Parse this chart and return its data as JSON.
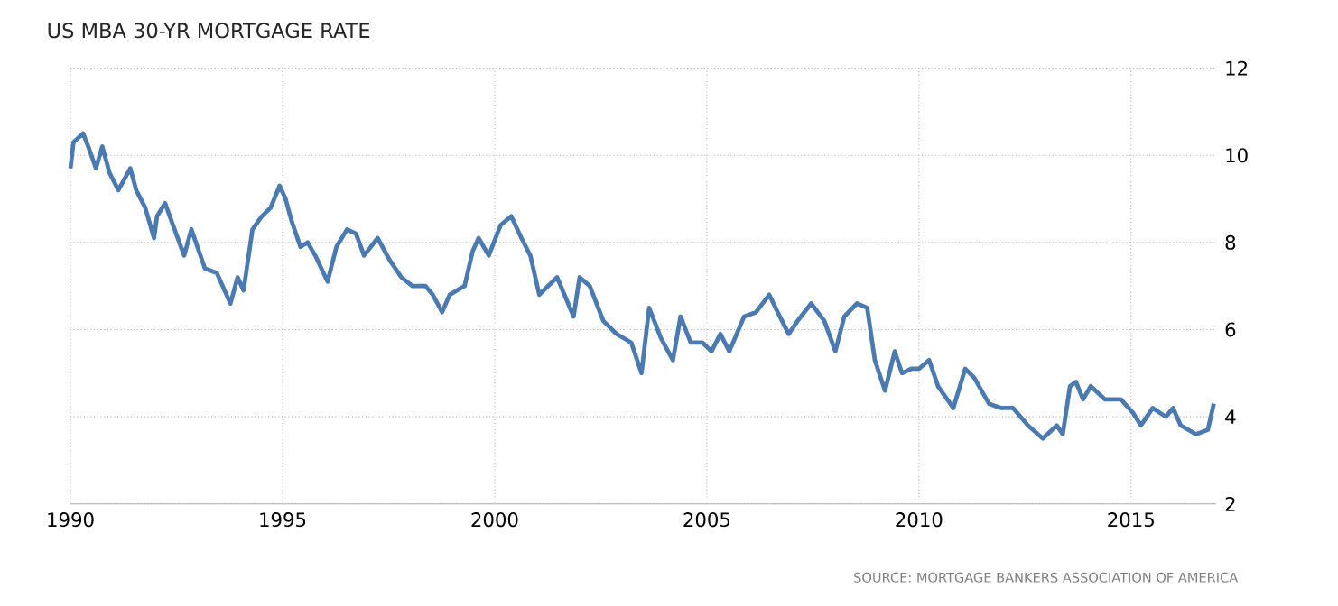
{
  "chart_data": {
    "type": "line",
    "title": "US MBA 30-YR MORTGAGE RATE",
    "annotations": [
      "SOURCE: MORTGAGE BANKERS ASSOCIATION OF AMERICA"
    ],
    "x": [
      1990.0,
      1990.07,
      1990.3,
      1990.42,
      1990.6,
      1990.75,
      1990.92,
      1991.13,
      1991.41,
      1991.55,
      1991.76,
      1991.97,
      1992.04,
      1992.23,
      1992.49,
      1992.68,
      1992.85,
      1993.17,
      1993.45,
      1993.77,
      1993.94,
      1994.08,
      1994.29,
      1994.51,
      1994.72,
      1994.93,
      1995.07,
      1995.21,
      1995.42,
      1995.59,
      1995.77,
      1996.06,
      1996.27,
      1996.52,
      1996.73,
      1996.92,
      1997.24,
      1997.52,
      1997.8,
      1998.06,
      1998.37,
      1998.54,
      1998.76,
      1998.94,
      1999.29,
      1999.48,
      1999.62,
      1999.86,
      2000.14,
      2000.39,
      2000.63,
      2000.84,
      2001.05,
      2001.47,
      2001.86,
      2002.0,
      2002.24,
      2002.56,
      2002.87,
      2003.22,
      2003.46,
      2003.64,
      2003.92,
      2004.2,
      2004.38,
      2004.62,
      2004.9,
      2005.11,
      2005.32,
      2005.53,
      2005.88,
      2006.16,
      2006.47,
      2006.72,
      2006.93,
      2007.14,
      2007.46,
      2007.77,
      2008.03,
      2008.24,
      2008.54,
      2008.78,
      2008.96,
      2009.2,
      2009.43,
      2009.6,
      2009.82,
      2010.0,
      2010.24,
      2010.45,
      2010.81,
      2011.09,
      2011.3,
      2011.65,
      2011.94,
      2012.22,
      2012.57,
      2012.92,
      2013.25,
      2013.39,
      2013.56,
      2013.7,
      2013.87,
      2014.05,
      2014.38,
      2014.76,
      2015.04,
      2015.23,
      2015.51,
      2015.82,
      2015.99,
      2016.17,
      2016.53,
      2016.81,
      2016.95
    ],
    "series": [
      {
        "color": "#4a7ab0",
        "values": [
          9.7,
          10.3,
          10.5,
          10.2,
          9.7,
          10.2,
          9.6,
          9.2,
          9.7,
          9.2,
          8.8,
          8.1,
          8.6,
          8.9,
          8.2,
          7.7,
          8.3,
          7.4,
          7.3,
          6.6,
          7.2,
          6.9,
          8.3,
          8.6,
          8.8,
          9.3,
          9.0,
          8.5,
          7.9,
          8.0,
          7.7,
          7.1,
          7.9,
          8.3,
          8.2,
          7.7,
          8.1,
          7.6,
          7.2,
          7.0,
          7.0,
          6.8,
          6.4,
          6.8,
          7.0,
          7.8,
          8.1,
          7.7,
          8.4,
          8.6,
          8.1,
          7.7,
          6.8,
          7.2,
          6.3,
          7.2,
          7.0,
          6.2,
          5.9,
          5.7,
          5.0,
          6.5,
          5.8,
          5.3,
          6.3,
          5.7,
          5.7,
          5.5,
          5.9,
          5.5,
          6.3,
          6.4,
          6.8,
          6.3,
          5.9,
          6.2,
          6.6,
          6.2,
          5.5,
          6.3,
          6.6,
          6.5,
          5.3,
          4.6,
          5.5,
          5.0,
          5.1,
          5.1,
          5.3,
          4.7,
          4.2,
          5.1,
          4.9,
          4.3,
          4.2,
          4.2,
          3.8,
          3.5,
          3.8,
          3.6,
          4.7,
          4.8,
          4.4,
          4.7,
          4.4,
          4.4,
          4.1,
          3.8,
          4.2,
          4.0,
          4.2,
          3.8,
          3.6,
          3.7,
          4.3
        ]
      }
    ],
    "xlim": [
      1990,
      2017
    ],
    "ylim": [
      2,
      12
    ],
    "xticks": [
      1990,
      1995,
      2000,
      2005,
      2010,
      2015
    ],
    "yticks": [
      2,
      4,
      6,
      8,
      10,
      12
    ],
    "grid": true,
    "line_style": "solid",
    "marker": "none"
  }
}
